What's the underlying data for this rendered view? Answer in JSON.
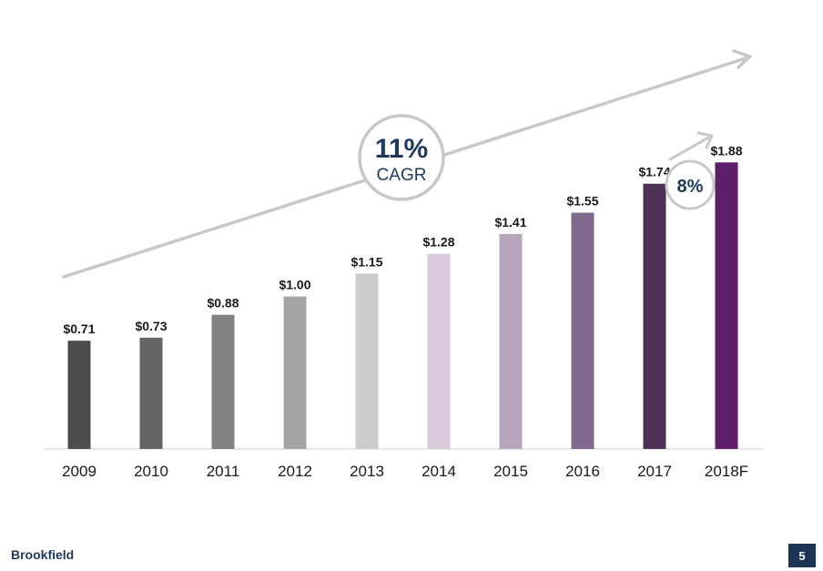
{
  "chart_data": {
    "type": "bar",
    "categories": [
      "2009",
      "2010",
      "2011",
      "2012",
      "2013",
      "2014",
      "2015",
      "2016",
      "2017",
      "2018F"
    ],
    "values": [
      0.71,
      0.73,
      0.88,
      1.0,
      1.15,
      1.28,
      1.41,
      1.55,
      1.74,
      1.88
    ],
    "value_labels": [
      "$0.71",
      "$0.73",
      "$0.88",
      "$1.00",
      "$1.15",
      "$1.28",
      "$1.41",
      "$1.55",
      "$1.74",
      "$1.88"
    ],
    "bar_colors": [
      "#4d4d4d",
      "#656565",
      "#828282",
      "#a6a4a4",
      "#cccccc",
      "#d9c8de",
      "#b7a4bd",
      "#806a8c",
      "#4e3157",
      "#5f1e69"
    ],
    "ylim": [
      0,
      2.3
    ],
    "grid": false,
    "annotations": [
      {
        "value": "11%",
        "label": "CAGR",
        "color": "#1f3a5f"
      },
      {
        "value": "8%",
        "color": "#1f3a5f"
      }
    ],
    "title": "",
    "xlabel": "",
    "ylabel": ""
  },
  "footer": {
    "brand": "Brookfield",
    "page_number": "5"
  },
  "colors": {
    "arrow": "#c8c8c8",
    "axis": "#d0d0d0",
    "navy": "#1c3557"
  }
}
